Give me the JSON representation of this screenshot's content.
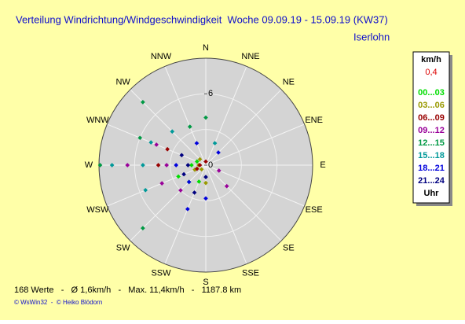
{
  "chart_data": {
    "type": "polar-scatter",
    "title": "Verteilung Windrichtung/Windgeschwindigkeit  Woche 09.09.19 - 15.09.19 (KW37)",
    "subtitle": "Iserlohn",
    "directions": [
      "N",
      "NNE",
      "NE",
      "ENE",
      "E",
      "ESE",
      "SE",
      "SSE",
      "S",
      "SSW",
      "SW",
      "WSW",
      "W",
      "WNW",
      "NW",
      "NNW"
    ],
    "rlim": [
      0,
      9
    ],
    "rticks": [
      0,
      6
    ],
    "rgrid": [
      3,
      6,
      9
    ],
    "legend_title": "km/h",
    "current_value": "0,4",
    "legend_footer": "Uhr",
    "series": [
      {
        "name": "00...03",
        "color": "#00dd00",
        "direction": [
          247.5,
          225,
          270,
          202.5,
          292.5
        ],
        "values": [
          2.5,
          2,
          1.2,
          1.5,
          0.8
        ]
      },
      {
        "name": "03...06",
        "color": "#999900",
        "direction": [
          270,
          247.5,
          180,
          225,
          315
        ],
        "values": [
          0.6,
          1,
          1.5,
          0.5,
          0.7
        ]
      },
      {
        "name": "06...09",
        "color": "#990000",
        "direction": [
          270,
          292.5,
          270,
          247.5,
          0
        ],
        "values": [
          0.5,
          3.5,
          4,
          0.8,
          0.3
        ]
      },
      {
        "name": "09...12",
        "color": "#990099",
        "direction": [
          270,
          247.5,
          292.5,
          225,
          112.5,
          135,
          270
        ],
        "values": [
          6.6,
          4,
          4.5,
          3,
          1.2,
          2.5,
          3.3
        ]
      },
      {
        "name": "12...15",
        "color": "#009944",
        "direction": [
          315,
          292.5,
          270,
          337.5,
          225,
          0
        ],
        "values": [
          7.5,
          6,
          8.9,
          3.5,
          7.5,
          4
        ]
      },
      {
        "name": "15...18",
        "color": "#009999",
        "direction": [
          270,
          292.5,
          315,
          247.5,
          22.5,
          270
        ],
        "values": [
          7.9,
          5,
          4,
          5.5,
          2,
          5.3
        ]
      },
      {
        "name": "18...21",
        "color": "#0000dd",
        "direction": [
          270,
          180,
          202.5,
          225,
          337.5,
          45
        ],
        "values": [
          2.5,
          2.8,
          4,
          2,
          2,
          1.5
        ]
      },
      {
        "name": "21...24",
        "color": "#000080",
        "direction": [
          270,
          292.5,
          180,
          247.5,
          202.5
        ],
        "values": [
          1.5,
          2.2,
          1,
          2,
          2.5
        ]
      }
    ],
    "footer": "168 Werte   -   Ø 1,6km/h   -   Max. 11,4km/h   -   1187.8 km",
    "credits": "© WsWin32  -  © Heiko Blödorn"
  }
}
